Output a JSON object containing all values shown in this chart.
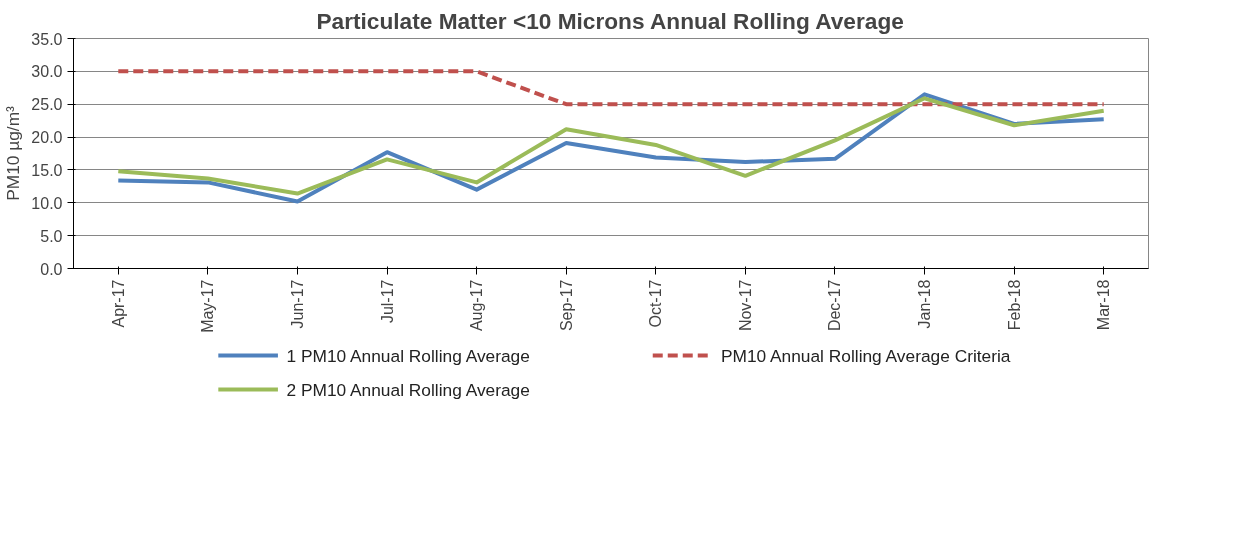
{
  "chart_data": {
    "type": "line",
    "title": "Particulate Matter <10 Microns Annual Rolling Average",
    "ylabel": "PM10 µg/m³",
    "categories": [
      "Apr-17",
      "May-17",
      "Jun-17",
      "Jul-17",
      "Aug-17",
      "Sep-17",
      "Oct-17",
      "Nov-17",
      "Dec-17",
      "Jan-18",
      "Feb-18",
      "Mar-18"
    ],
    "series": [
      {
        "name": "1 PM10 Annual Rolling Average",
        "color": "#4f81bd",
        "values": [
          13.4,
          13.1,
          10.2,
          17.7,
          12.0,
          19.1,
          16.9,
          16.2,
          16.7,
          26.5,
          22.0,
          22.7
        ]
      },
      {
        "name": "PM10 Annual Rolling Average Criteria",
        "color": "#c0504d",
        "line_style": "dashed",
        "values": [
          30,
          30,
          30,
          30,
          30,
          25,
          25,
          25,
          25,
          25,
          25,
          25
        ]
      },
      {
        "name": "2 PM10 Annual Rolling Average",
        "color": "#9bbb59",
        "values": [
          14.8,
          13.7,
          11.4,
          16.6,
          13.1,
          21.2,
          18.8,
          14.1,
          19.5,
          25.9,
          21.8,
          24.0
        ]
      }
    ],
    "ylim": [
      0,
      35
    ],
    "yticks": [
      {
        "value": 0,
        "label": "0.0"
      },
      {
        "value": 5,
        "label": "5.0"
      },
      {
        "value": 10,
        "label": "10.0"
      },
      {
        "value": 15,
        "label": "15.0"
      },
      {
        "value": 20,
        "label": "20.0"
      },
      {
        "value": 25,
        "label": "25.0"
      },
      {
        "value": 30,
        "label": "30.0"
      },
      {
        "value": 35,
        "label": "35.0"
      }
    ],
    "grid": "y",
    "legend": "bottom",
    "line_style": "solid",
    "marker": "none"
  }
}
